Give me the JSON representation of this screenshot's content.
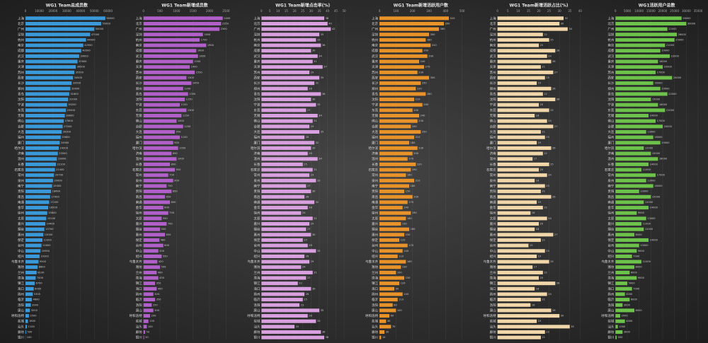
{
  "categories": [
    "上海",
    "北京",
    "广州",
    "深圳",
    "杭州",
    "南京",
    "成都",
    "武汉",
    "重庆",
    "天津",
    "苏州",
    "西安",
    "长沙",
    "郑州",
    "青岛",
    "沈阳",
    "宁波",
    "东莞",
    "无锡",
    "佛山",
    "合肥",
    "大连",
    "福州",
    "厦门",
    "哈尔滨",
    "济南",
    "温州",
    "长春",
    "石家庄",
    "常州",
    "泉州",
    "南宁",
    "贵阳",
    "南昌",
    "南通",
    "金华",
    "徐州",
    "太原",
    "嘉兴",
    "烟台",
    "惠州",
    "保定",
    "台州",
    "中山",
    "绍兴",
    "乌鲁木齐",
    "潍坊",
    "兰州",
    "珠海",
    "镇江",
    "海口",
    "扬州",
    "临沂",
    "洛阳",
    "唐山",
    "呼和浩特",
    "盐城",
    "汕头",
    "廊坊",
    "银川"
  ],
  "chart_data": [
    {
      "type": "bar",
      "orientation": "horizontal",
      "title": "WG1 Team总成员数",
      "color": "#3a9ad9",
      "grid": true,
      "xlim": [
        0,
        60000
      ],
      "xticks": [
        0,
        10000,
        20000,
        30000,
        40000,
        50000,
        60000
      ],
      "values": [
        58000,
        55000,
        50000,
        47000,
        44000,
        42000,
        40500,
        39000,
        37800,
        36500,
        35500,
        34500,
        33500,
        32600,
        31800,
        31000,
        30200,
        29400,
        28600,
        27800,
        27000,
        26300,
        25600,
        24900,
        24200,
        23500,
        22800,
        22100,
        21400,
        20700,
        20000,
        19300,
        18600,
        17900,
        17200,
        16500,
        15800,
        15100,
        14400,
        13700,
        13000,
        12300,
        11600,
        10900,
        10200,
        9500,
        8800,
        8100,
        7400,
        6700,
        6000,
        5300,
        4600,
        3900,
        3200,
        2500,
        1800,
        1100,
        500,
        100
      ]
    },
    {
      "type": "bar",
      "orientation": "horizontal",
      "title": "WG1 Team新增成员数",
      "color": "#b060c8",
      "grid": true,
      "xlim": [
        0,
        2500
      ],
      "xticks": [
        0,
        500,
        1000,
        1500,
        2000,
        2500
      ],
      "values": [
        2400,
        2350,
        2300,
        1800,
        1700,
        1900,
        1600,
        1650,
        1500,
        1400,
        1550,
        1300,
        1450,
        1200,
        1350,
        1250,
        1100,
        1300,
        1150,
        1000,
        1200,
        950,
        1100,
        900,
        1050,
        850,
        1000,
        800,
        950,
        750,
        900,
        700,
        850,
        650,
        800,
        600,
        750,
        550,
        700,
        500,
        650,
        480,
        600,
        450,
        550,
        420,
        500,
        400,
        450,
        350,
        400,
        300,
        350,
        250,
        300,
        200,
        150,
        100,
        50,
        20
      ]
    },
    {
      "type": "bar",
      "orientation": "horizontal",
      "title": "WG1 Team新增点击率(%)",
      "color": "#d9a0e0",
      "grid": true,
      "xlim": [
        0,
        50
      ],
      "xticks": [
        0,
        5,
        10,
        15,
        20,
        25,
        30,
        35,
        40,
        45,
        50
      ],
      "values": [
        38,
        40,
        42,
        35,
        33,
        36,
        30,
        34,
        31,
        37,
        29,
        35,
        32,
        28,
        36,
        30,
        33,
        27,
        34,
        31,
        29,
        35,
        26,
        32,
        30,
        28,
        34,
        25,
        31,
        29,
        33,
        27,
        30,
        26,
        32,
        28,
        24,
        31,
        29,
        27,
        30,
        25,
        28,
        33,
        26,
        29,
        24,
        31,
        27,
        22,
        30,
        26,
        25,
        23,
        35,
        28,
        33,
        20,
        36,
        38
      ]
    },
    {
      "type": "bar",
      "orientation": "horizontal",
      "title": "WG1 Team新增活跃用户数",
      "color": "#e8922a",
      "grid": true,
      "xlim": [
        0,
        500
      ],
      "xticks": [
        0,
        100,
        200,
        300,
        400,
        500
      ],
      "values": [
        420,
        390,
        360,
        300,
        280,
        310,
        260,
        290,
        240,
        270,
        230,
        300,
        250,
        220,
        280,
        210,
        260,
        200,
        240,
        230,
        190,
        250,
        210,
        180,
        230,
        200,
        170,
        220,
        190,
        160,
        210,
        180,
        150,
        200,
        170,
        140,
        190,
        160,
        130,
        180,
        150,
        120,
        170,
        140,
        110,
        160,
        130,
        100,
        150,
        120,
        90,
        140,
        110,
        80,
        100,
        60,
        40,
        70,
        30,
        10
      ]
    },
    {
      "type": "bar",
      "orientation": "horizontal",
      "title": "WG1 Team新增活跃占比(%)",
      "color": "#f0d6a8",
      "grid": true,
      "xlim": [
        0,
        40
      ],
      "xticks": [
        0,
        5,
        10,
        15,
        20,
        25,
        30,
        35,
        40
      ],
      "values": [
        32,
        30,
        34,
        22,
        25,
        20,
        28,
        24,
        26,
        21,
        27,
        23,
        19,
        26,
        22,
        28,
        20,
        25,
        18,
        24,
        27,
        21,
        23,
        19,
        26,
        22,
        17,
        25,
        20,
        24,
        18,
        23,
        21,
        26,
        19,
        22,
        16,
        24,
        20,
        18,
        27,
        21,
        15,
        23,
        19,
        25,
        17,
        22,
        20,
        28,
        18,
        24,
        21,
        16,
        26,
        30,
        19,
        35,
        23,
        21
      ]
    },
    {
      "type": "bar",
      "orientation": "horizontal",
      "title": "WG1活跃用户总数",
      "color": "#6cc24a",
      "grid": true,
      "xlim": [
        0,
        35000
      ],
      "xticks": [
        0,
        5000,
        10000,
        15000,
        20000,
        25000,
        30000,
        35000
      ],
      "values": [
        28000,
        30000,
        22000,
        26000,
        25000,
        21000,
        19000,
        23000,
        18000,
        20000,
        17000,
        24000,
        16000,
        19000,
        22000,
        15000,
        18000,
        21000,
        14000,
        17000,
        20000,
        13000,
        16000,
        19000,
        12000,
        15000,
        18000,
        14000,
        11000,
        17000,
        13000,
        16000,
        10000,
        15000,
        12000,
        14000,
        9000,
        13000,
        11000,
        12000,
        8000,
        14000,
        10000,
        9000,
        7000,
        11000,
        8000,
        6000,
        9000,
        5000,
        7000,
        4000,
        6000,
        3000,
        8000,
        2000,
        4000,
        1000,
        3000,
        500
      ]
    }
  ]
}
